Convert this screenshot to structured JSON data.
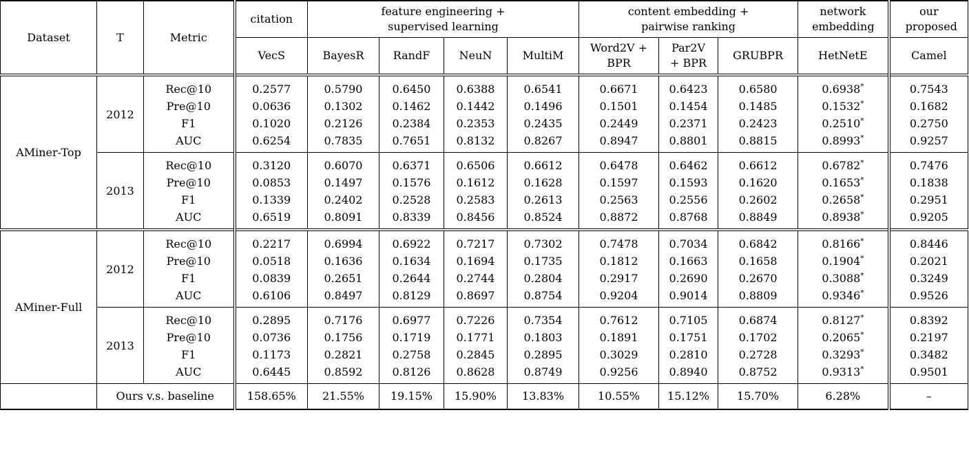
{
  "headers": {
    "dataset": "Dataset",
    "t": "T",
    "metric": "Metric",
    "groups": [
      {
        "label": "citation"
      },
      {
        "label": "feature engineering + supervised learning"
      },
      {
        "label": "content embedding + pairwise ranking"
      },
      {
        "label": "network embedding"
      },
      {
        "label": "our proposed"
      }
    ],
    "methods": [
      "VecS",
      "BayesR",
      "RandF",
      "NeuN",
      "MultiM",
      "Word2V + BPR",
      "Par2V + BPR",
      "GRUBPR",
      "HetNetE",
      "Camel"
    ]
  },
  "datasets": [
    {
      "name": "AMiner-Top",
      "years": [
        {
          "year": "2012",
          "rows": [
            {
              "metric": "Rec@10",
              "values": [
                "0.2577",
                "0.5790",
                "0.6450",
                "0.6388",
                "0.6541",
                "0.6671",
                "0.6423",
                "0.6580",
                "0.6938",
                "0.7543"
              ]
            },
            {
              "metric": "Pre@10",
              "values": [
                "0.0636",
                "0.1302",
                "0.1462",
                "0.1442",
                "0.1496",
                "0.1501",
                "0.1454",
                "0.1485",
                "0.1532",
                "0.1682"
              ]
            },
            {
              "metric": "F1",
              "values": [
                "0.1020",
                "0.2126",
                "0.2384",
                "0.2353",
                "0.2435",
                "0.2449",
                "0.2371",
                "0.2423",
                "0.2510",
                "0.2750"
              ]
            },
            {
              "metric": "AUC",
              "values": [
                "0.6254",
                "0.7835",
                "0.7651",
                "0.8132",
                "0.8267",
                "0.8947",
                "0.8801",
                "0.8815",
                "0.8993",
                "0.9257"
              ]
            }
          ]
        },
        {
          "year": "2013",
          "rows": [
            {
              "metric": "Rec@10",
              "values": [
                "0.3120",
                "0.6070",
                "0.6371",
                "0.6506",
                "0.6612",
                "0.6478",
                "0.6462",
                "0.6612",
                "0.6782",
                "0.7476"
              ]
            },
            {
              "metric": "Pre@10",
              "values": [
                "0.0853",
                "0.1497",
                "0.1576",
                "0.1612",
                "0.1628",
                "0.1597",
                "0.1593",
                "0.1620",
                "0.1653",
                "0.1838"
              ]
            },
            {
              "metric": "F1",
              "values": [
                "0.1339",
                "0.2402",
                "0.2528",
                "0.2583",
                "0.2613",
                "0.2563",
                "0.2556",
                "0.2602",
                "0.2658",
                "0.2951"
              ]
            },
            {
              "metric": "AUC",
              "values": [
                "0.6519",
                "0.8091",
                "0.8339",
                "0.8456",
                "0.8524",
                "0.8872",
                "0.8768",
                "0.8849",
                "0.8938",
                "0.9205"
              ]
            }
          ]
        }
      ]
    },
    {
      "name": "AMiner-Full",
      "years": [
        {
          "year": "2012",
          "rows": [
            {
              "metric": "Rec@10",
              "values": [
                "0.2217",
                "0.6994",
                "0.6922",
                "0.7217",
                "0.7302",
                "0.7478",
                "0.7034",
                "0.6842",
                "0.8166",
                "0.8446"
              ]
            },
            {
              "metric": "Pre@10",
              "values": [
                "0.0518",
                "0.1636",
                "0.1634",
                "0.1694",
                "0.1735",
                "0.1812",
                "0.1663",
                "0.1658",
                "0.1904",
                "0.2021"
              ]
            },
            {
              "metric": "F1",
              "values": [
                "0.0839",
                "0.2651",
                "0.2644",
                "0.2744",
                "0.2804",
                "0.2917",
                "0.2690",
                "0.2670",
                "0.3088",
                "0.3249"
              ]
            },
            {
              "metric": "AUC",
              "values": [
                "0.6106",
                "0.8497",
                "0.8129",
                "0.8697",
                "0.8754",
                "0.9204",
                "0.9014",
                "0.8809",
                "0.9346",
                "0.9526"
              ]
            }
          ]
        },
        {
          "year": "2013",
          "rows": [
            {
              "metric": "Rec@10",
              "values": [
                "0.2895",
                "0.7176",
                "0.6977",
                "0.7226",
                "0.7354",
                "0.7612",
                "0.7105",
                "0.6874",
                "0.8127",
                "0.8392"
              ]
            },
            {
              "metric": "Pre@10",
              "values": [
                "0.0736",
                "0.1756",
                "0.1719",
                "0.1771",
                "0.1803",
                "0.1891",
                "0.1751",
                "0.1702",
                "0.2065",
                "0.2197"
              ]
            },
            {
              "metric": "F1",
              "values": [
                "0.1173",
                "0.2821",
                "0.2758",
                "0.2845",
                "0.2895",
                "0.3029",
                "0.2810",
                "0.2728",
                "0.3293",
                "0.3482"
              ]
            },
            {
              "metric": "AUC",
              "values": [
                "0.6445",
                "0.8592",
                "0.8126",
                "0.8628",
                "0.8749",
                "0.9256",
                "0.8940",
                "0.8752",
                "0.9313",
                "0.9501"
              ]
            }
          ]
        }
      ]
    }
  ],
  "marker": "*",
  "summary": {
    "label": "Ours v.s. baseline",
    "values": [
      "158.65%",
      "21.55%",
      "19.15%",
      "15.90%",
      "13.83%",
      "10.55%",
      "15.12%",
      "15.70%",
      "6.28%",
      "–"
    ]
  }
}
